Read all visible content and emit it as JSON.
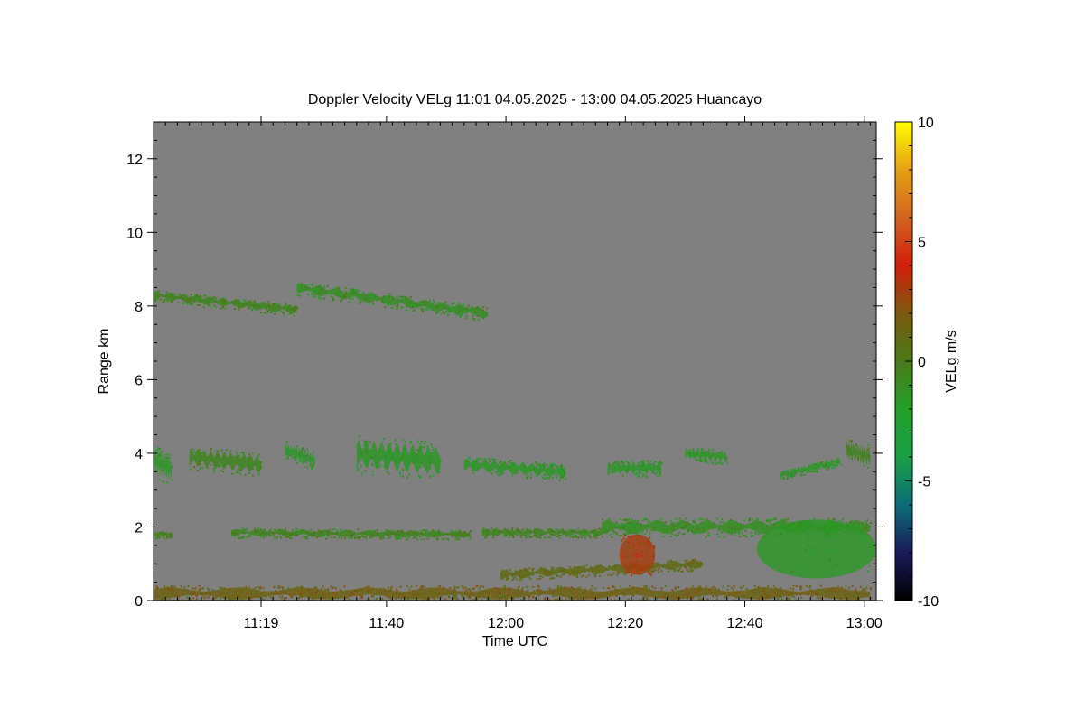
{
  "chart_data": {
    "type": "heatmap",
    "title": "Doppler Velocity VELg   11:01 04.05.2025 - 13:00 04.05.2025 Huancayo",
    "xlabel": "Time UTC",
    "ylabel": "Range km",
    "x_ticks": [
      {
        "label": "11:19",
        "minutes": 18
      },
      {
        "label": "11:40",
        "minutes": 39
      },
      {
        "label": "12:00",
        "minutes": 59
      },
      {
        "label": "12:20",
        "minutes": 79
      },
      {
        "label": "12:40",
        "minutes": 99
      },
      {
        "label": "13:00",
        "minutes": 119
      }
    ],
    "xlim_minutes": [
      0,
      121
    ],
    "y_ticks": [
      0,
      2,
      4,
      6,
      8,
      10,
      12
    ],
    "ylim": [
      0,
      13
    ],
    "colorbar": {
      "label": "VELg m/s",
      "range": [
        -10,
        10
      ],
      "ticks": [
        10,
        5,
        0,
        -5,
        -10
      ],
      "colors": [
        "#000000",
        "#1a1a5a",
        "#0a6e78",
        "#19a046",
        "#22a02a",
        "#4a7a1a",
        "#7a5a10",
        "#d21e0a",
        "#d2641e",
        "#e6a014",
        "#ffff00"
      ]
    },
    "background_color": "#808080",
    "layers": [
      {
        "name": "band-8km-a",
        "x_start": 0,
        "x_end": 24,
        "y_start": 8.3,
        "y_end": 7.9,
        "thickness": 0.25,
        "velocity": -0.5
      },
      {
        "name": "band-8km-b",
        "x_start": 24,
        "x_end": 56,
        "y_start": 8.5,
        "y_end": 7.8,
        "thickness": 0.3,
        "velocity": -1
      },
      {
        "name": "band-4km-1",
        "x_start": 0,
        "x_end": 3,
        "y_start": 3.8,
        "y_end": 3.6,
        "thickness": 0.7,
        "velocity": -1.5
      },
      {
        "name": "band-4km-2",
        "x_start": 6,
        "x_end": 18,
        "y_start": 3.9,
        "y_end": 3.7,
        "thickness": 0.5,
        "velocity": -0.5
      },
      {
        "name": "band-4km-3",
        "x_start": 22,
        "x_end": 27,
        "y_start": 4.1,
        "y_end": 3.8,
        "thickness": 0.4,
        "velocity": -1.5
      },
      {
        "name": "band-4km-4",
        "x_start": 34,
        "x_end": 48,
        "y_start": 4.0,
        "y_end": 3.8,
        "thickness": 0.8,
        "velocity": -1.5
      },
      {
        "name": "band-4km-5",
        "x_start": 52,
        "x_end": 69,
        "y_start": 3.7,
        "y_end": 3.5,
        "thickness": 0.35,
        "velocity": -1.5
      },
      {
        "name": "band-4km-6",
        "x_start": 76,
        "x_end": 85,
        "y_start": 3.6,
        "y_end": 3.6,
        "thickness": 0.35,
        "velocity": -1.5
      },
      {
        "name": "band-4km-7",
        "x_start": 89,
        "x_end": 96,
        "y_start": 4.0,
        "y_end": 3.9,
        "thickness": 0.3,
        "velocity": -1.5
      },
      {
        "name": "band-4km-8",
        "x_start": 105,
        "x_end": 115,
        "y_start": 3.4,
        "y_end": 3.8,
        "thickness": 0.2,
        "velocity": -1.5
      },
      {
        "name": "band-4km-9",
        "x_start": 116,
        "x_end": 120,
        "y_start": 4.1,
        "y_end": 3.9,
        "thickness": 0.5,
        "velocity": -0.5
      },
      {
        "name": "band-2km-a",
        "x_start": 0,
        "x_end": 3,
        "y_start": 1.8,
        "y_end": 1.8,
        "thickness": 0.15,
        "velocity": -0.5
      },
      {
        "name": "band-2km-b",
        "x_start": 13,
        "x_end": 53,
        "y_start": 1.85,
        "y_end": 1.8,
        "thickness": 0.2,
        "velocity": -0.5
      },
      {
        "name": "band-2km-c",
        "x_start": 55,
        "x_end": 75,
        "y_start": 1.85,
        "y_end": 1.85,
        "thickness": 0.2,
        "velocity": -0.5
      },
      {
        "name": "band-2km-d",
        "x_start": 75,
        "x_end": 120,
        "y_start": 2.0,
        "y_end": 2.0,
        "thickness": 0.4,
        "velocity": -1
      },
      {
        "name": "band-low-e",
        "x_start": 58,
        "x_end": 92,
        "y_start": 0.7,
        "y_end": 1.0,
        "thickness": 0.25,
        "velocity": 1
      },
      {
        "name": "band-ground",
        "x_start": 0,
        "x_end": 120,
        "y_start": 0.2,
        "y_end": 0.2,
        "thickness": 0.35,
        "velocity": 1.5
      }
    ],
    "blobs": [
      {
        "name": "updraft-red",
        "x": 81,
        "y": 1.25,
        "rx": 3,
        "ry": 0.55,
        "velocity": 3
      },
      {
        "name": "outflow-green",
        "x": 111,
        "y": 1.4,
        "rx": 10,
        "ry": 0.8,
        "velocity": -1.5
      }
    ]
  }
}
